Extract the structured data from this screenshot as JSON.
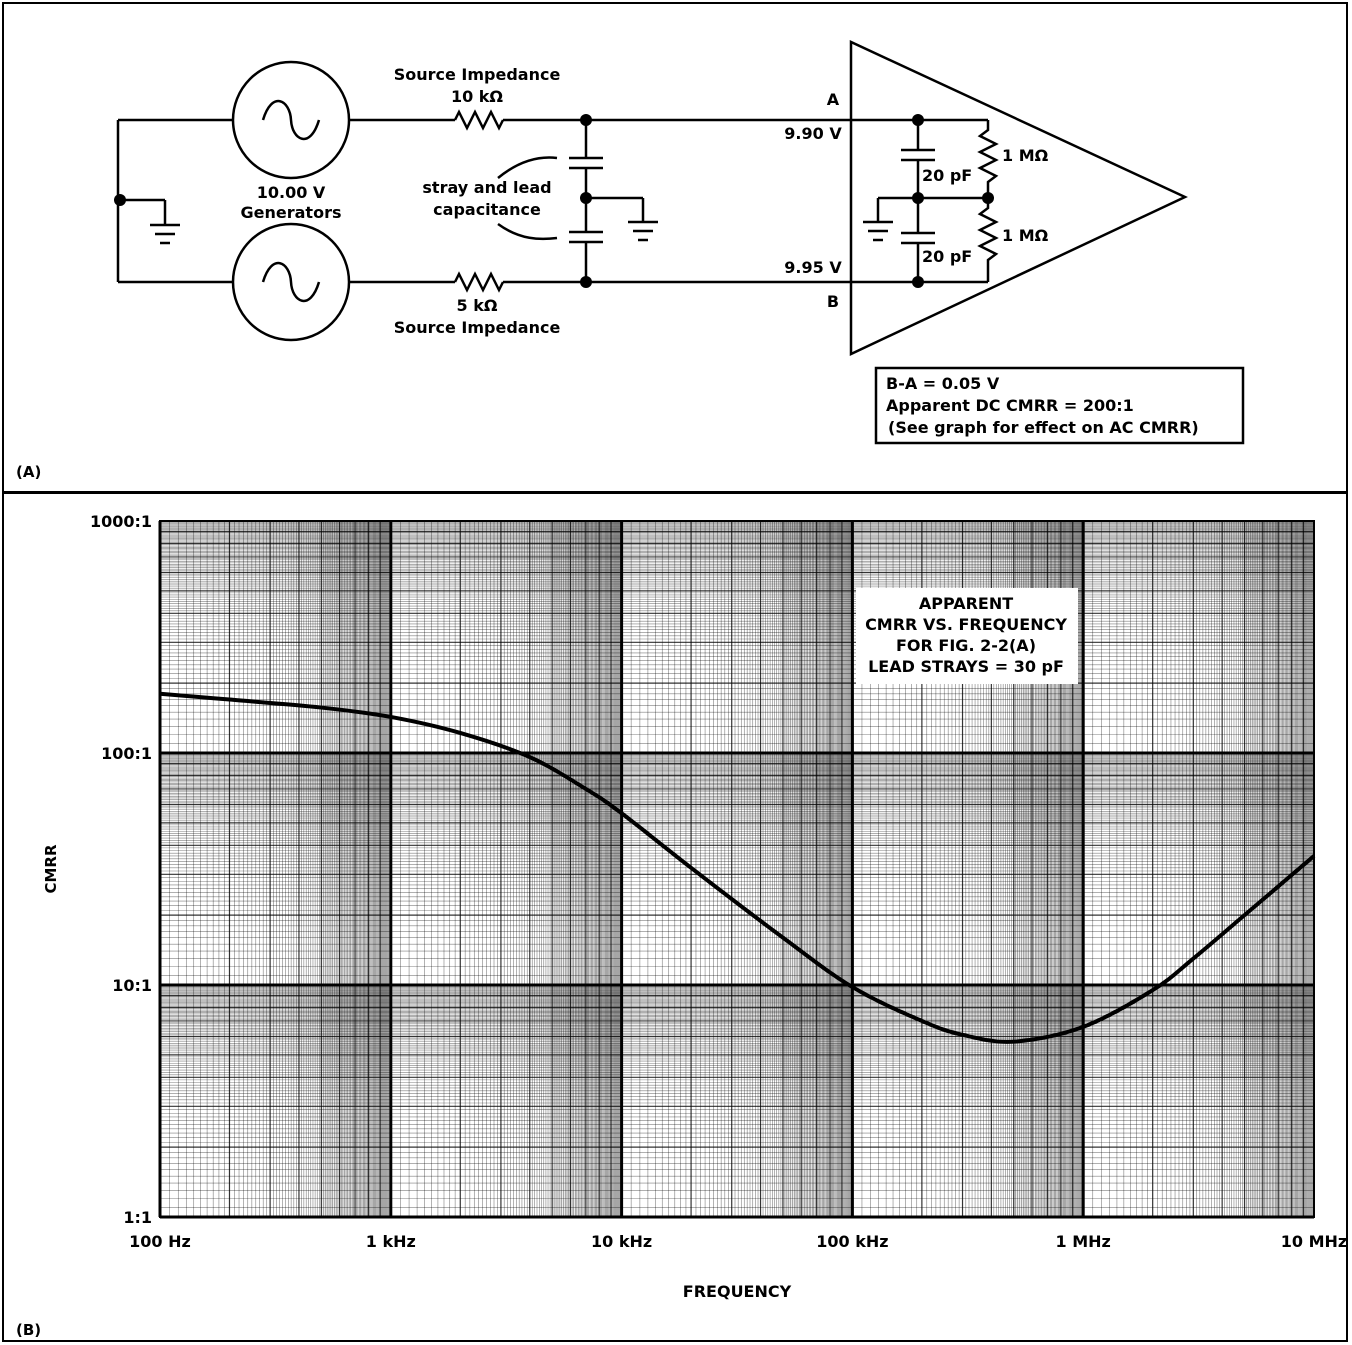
{
  "panel_a": {
    "label": "(A)",
    "source_impedance_top": {
      "title": "Source Impedance",
      "value": "10 kΩ"
    },
    "source_impedance_bottom": {
      "title": "Source Impedance",
      "value": "5 kΩ"
    },
    "generators": {
      "line1": "10.00 V",
      "line2": "Generators"
    },
    "stray": {
      "line1": "stray and lead",
      "line2": "capacitance"
    },
    "node_a": {
      "name": "A",
      "voltage": "9.90 V"
    },
    "node_b": {
      "name": "B",
      "voltage": "9.95 V"
    },
    "cap_top": "20 pF",
    "cap_bottom": "20 pF",
    "res_top": "1 MΩ",
    "res_bottom": "1 MΩ",
    "info_box": {
      "line1": "B-A = 0.05 V",
      "line2": "Apparent DC CMRR = 200:1",
      "line3": "(See graph for effect on AC CMRR)"
    }
  },
  "panel_b": {
    "label": "(B)"
  },
  "chart_data": {
    "type": "line",
    "title_lines": [
      "APPARENT",
      "CMRR VS. FREQUENCY",
      "FOR FIG. 2-2(A)",
      "LEAD STRAYS = 30 pF"
    ],
    "xlabel": "FREQUENCY",
    "ylabel": "CMRR",
    "x_scale": "log",
    "y_scale": "log",
    "xlim": [
      100,
      10000000
    ],
    "ylim": [
      1,
      1000
    ],
    "x_ticks": [
      {
        "value": 100,
        "label": "100 Hz"
      },
      {
        "value": 1000,
        "label": "1 kHz"
      },
      {
        "value": 10000,
        "label": "10 kHz"
      },
      {
        "value": 100000,
        "label": "100 kHz"
      },
      {
        "value": 1000000,
        "label": "1 MHz"
      },
      {
        "value": 10000000,
        "label": "10 MHz"
      }
    ],
    "y_ticks": [
      {
        "value": 1,
        "label": "1:1"
      },
      {
        "value": 10,
        "label": "10:1"
      },
      {
        "value": 100,
        "label": "100:1"
      },
      {
        "value": 1000,
        "label": "1000:1"
      }
    ],
    "grid": true,
    "series": [
      {
        "x": [
          100,
          200,
          500,
          1000,
          2000,
          4000,
          7000,
          10000,
          20000,
          50000,
          100000,
          200000,
          300000,
          500000,
          1000000,
          2000000,
          3000000,
          5000000,
          10000000
        ],
        "y": [
          180,
          170,
          157,
          143,
          122,
          96,
          70,
          55,
          32,
          16,
          9.8,
          7.0,
          6.1,
          5.7,
          6.6,
          9.5,
          13,
          20,
          36
        ]
      }
    ]
  }
}
